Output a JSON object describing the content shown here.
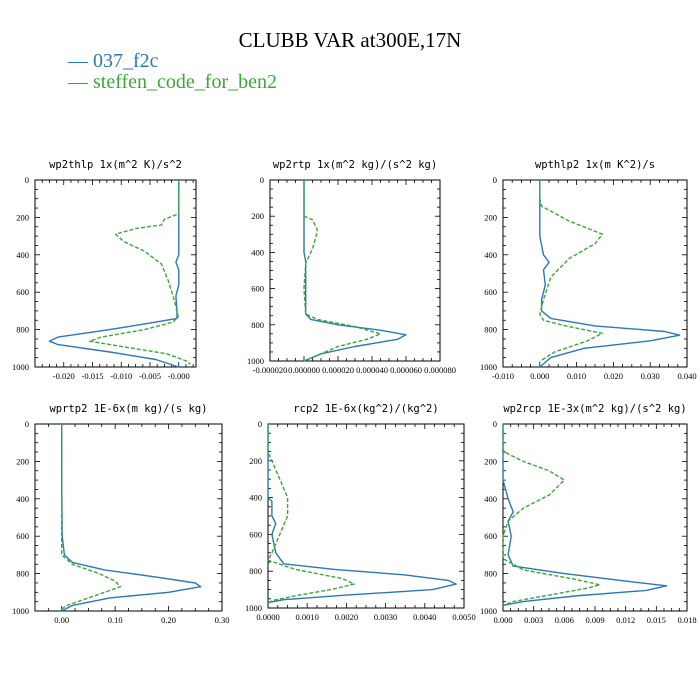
{
  "title": "CLUBB VAR at300E,17N",
  "legend": [
    {
      "dash": "—",
      "label": "037_f2c",
      "color": "#2b78b8"
    },
    {
      "dash": "—",
      "label": "steffen_code_for_ben2",
      "color": "#3aa838"
    }
  ],
  "chart_data": [
    {
      "type": "line",
      "title": "wp2thlp  1x(m^2 K)/s^2",
      "xlim": [
        -0.025,
        0.003
      ],
      "ylim": [
        1000,
        0
      ],
      "xticks": [
        -0.02,
        -0.015,
        -0.01,
        -0.005,
        0.0
      ],
      "xtick_labels": [
        "-0.020",
        "-0.015",
        "-0.010",
        "-0.005",
        "-0.000"
      ],
      "yticks": [
        0,
        200,
        400,
        600,
        800,
        1000
      ],
      "series": [
        {
          "name": "037_f2c",
          "points": [
            [
              0.0,
              0
            ],
            [
              0.0,
              100
            ],
            [
              0.0,
              200
            ],
            [
              0.0,
              300
            ],
            [
              0.0,
              400
            ],
            [
              -0.0005,
              440
            ],
            [
              0.0,
              480
            ],
            [
              0.0,
              560
            ],
            [
              -0.0005,
              620
            ],
            [
              -0.0003,
              700
            ],
            [
              -0.0003,
              740
            ],
            [
              -0.004,
              760
            ],
            [
              -0.012,
              800
            ],
            [
              -0.021,
              840
            ],
            [
              -0.0225,
              862
            ],
            [
              -0.021,
              880
            ],
            [
              -0.012,
              920
            ],
            [
              -0.004,
              960
            ],
            [
              0.0,
              1000
            ]
          ]
        },
        {
          "name": "steffen_code_for_ben2",
          "points": [
            [
              0.0,
              0
            ],
            [
              0.0,
              100
            ],
            [
              0.0,
              180
            ],
            [
              -0.0025,
              210
            ],
            [
              -0.003,
              240
            ],
            [
              -0.0075,
              260
            ],
            [
              -0.011,
              290
            ],
            [
              -0.0095,
              330
            ],
            [
              -0.006,
              380
            ],
            [
              -0.003,
              450
            ],
            [
              -0.0018,
              540
            ],
            [
              -0.0008,
              640
            ],
            [
              -0.0001,
              730
            ],
            [
              -0.001,
              760
            ],
            [
              -0.006,
              800
            ],
            [
              -0.0135,
              840
            ],
            [
              -0.0155,
              862
            ],
            [
              -0.01,
              890
            ],
            [
              -0.002,
              930
            ],
            [
              0.0015,
              970
            ],
            [
              0.002,
              985
            ]
          ]
        }
      ]
    },
    {
      "type": "line",
      "title": "wp2rtp  1x(m^2 kg)/(s^2 kg)",
      "xlim": [
        -2e-05,
        8e-05
      ],
      "ylim": [
        1000,
        0
      ],
      "xticks": [
        -2e-05,
        0.0,
        2e-05,
        4e-05,
        6e-05,
        8e-05
      ],
      "xtick_labels": [
        "-0.000020",
        "0.000000",
        "0.000020",
        "0.000040",
        "0.000060",
        "0.000080"
      ],
      "yticks": [
        0,
        200,
        400,
        600,
        800,
        1000
      ],
      "series": [
        {
          "name": "037_f2c",
          "points": [
            [
              0.0,
              0
            ],
            [
              0.0,
              200
            ],
            [
              0.0,
              400
            ],
            [
              1e-06,
              450
            ],
            [
              1e-06,
              600
            ],
            [
              1e-06,
              740
            ],
            [
              4e-06,
              770
            ],
            [
              2e-05,
              800
            ],
            [
              4.5e-05,
              830
            ],
            [
              6e-05,
              855
            ],
            [
              5.5e-05,
              880
            ],
            [
              3e-05,
              920
            ],
            [
              1e-05,
              960
            ],
            [
              0.0,
              1000
            ]
          ]
        },
        {
          "name": "steffen_code_for_ben2",
          "points": [
            [
              0.0,
              0
            ],
            [
              0.0,
              100
            ],
            [
              0.0,
              200
            ],
            [
              5e-06,
              220
            ],
            [
              8e-06,
              280
            ],
            [
              5e-06,
              380
            ],
            [
              1e-06,
              460
            ],
            [
              0.0,
              600
            ],
            [
              1e-06,
              740
            ],
            [
              8e-06,
              770
            ],
            [
              3e-05,
              810
            ],
            [
              4.5e-05,
              850
            ],
            [
              3.7e-05,
              880
            ],
            [
              2e-05,
              920
            ],
            [
              1e-05,
              960
            ],
            [
              0.0,
              1000
            ]
          ]
        }
      ]
    },
    {
      "type": "line",
      "title": "wpthlp2  1x(m K^2)/s",
      "xlim": [
        -0.01,
        0.04
      ],
      "ylim": [
        1000,
        0
      ],
      "xticks": [
        -0.01,
        0.0,
        0.01,
        0.02,
        0.03,
        0.04
      ],
      "xtick_labels": [
        "-0.010",
        "0.000",
        "0.010",
        "0.020",
        "0.030",
        "0.040"
      ],
      "yticks": [
        0,
        200,
        400,
        600,
        800,
        1000
      ],
      "series": [
        {
          "name": "037_f2c",
          "points": [
            [
              0.0,
              0
            ],
            [
              0.0,
              100
            ],
            [
              0.0,
              300
            ],
            [
              0.001,
              400
            ],
            [
              0.0025,
              440
            ],
            [
              0.001,
              480
            ],
            [
              0.0015,
              560
            ],
            [
              0.0005,
              640
            ],
            [
              0.0005,
              700
            ],
            [
              0.003,
              740
            ],
            [
              0.015,
              780
            ],
            [
              0.034,
              810
            ],
            [
              0.038,
              830
            ],
            [
              0.03,
              860
            ],
            [
              0.012,
              900
            ],
            [
              0.003,
              950
            ],
            [
              0.0,
              1000
            ]
          ]
        },
        {
          "name": "steffen_code_for_ben2",
          "points": [
            [
              0.0,
              0
            ],
            [
              0.0,
              100
            ],
            [
              0.0005,
              140
            ],
            [
              0.008,
              220
            ],
            [
              0.017,
              290
            ],
            [
              0.015,
              340
            ],
            [
              0.008,
              420
            ],
            [
              0.003,
              520
            ],
            [
              0.001,
              640
            ],
            [
              0.0,
              720
            ],
            [
              0.001,
              750
            ],
            [
              0.007,
              780
            ],
            [
              0.017,
              820
            ],
            [
              0.013,
              860
            ],
            [
              0.004,
              920
            ],
            [
              0.0,
              970
            ]
          ]
        }
      ]
    },
    {
      "type": "line",
      "title": "wprtp2  1E-6x(m kg)/(s kg)",
      "xlim": [
        -0.05,
        0.3
      ],
      "ylim": [
        1000,
        0
      ],
      "xticks": [
        0.0,
        0.1,
        0.2,
        0.3
      ],
      "xtick_labels": [
        "0.00",
        "0.10",
        "0.20",
        "0.30"
      ],
      "yticks": [
        0,
        200,
        400,
        600,
        800,
        1000
      ],
      "series": [
        {
          "name": "037_f2c",
          "points": [
            [
              0.0,
              0
            ],
            [
              0.0,
              300
            ],
            [
              0.001,
              600
            ],
            [
              0.005,
              700
            ],
            [
              0.02,
              740
            ],
            [
              0.08,
              780
            ],
            [
              0.18,
              820
            ],
            [
              0.25,
              850
            ],
            [
              0.26,
              870
            ],
            [
              0.2,
              900
            ],
            [
              0.09,
              930
            ],
            [
              0.02,
              970
            ],
            [
              0.0,
              1000
            ]
          ]
        },
        {
          "name": "steffen_code_for_ben2",
          "points": [
            [
              0.0,
              0
            ],
            [
              0.0,
              300
            ],
            [
              0.0,
              700
            ],
            [
              0.02,
              750
            ],
            [
              0.07,
              800
            ],
            [
              0.1,
              840
            ],
            [
              0.11,
              870
            ],
            [
              0.08,
              900
            ],
            [
              0.04,
              940
            ],
            [
              0.01,
              970
            ],
            [
              0.0,
              990
            ]
          ]
        }
      ]
    },
    {
      "type": "line",
      "title": "rcp2  1E-6x(kg^2)/(kg^2)",
      "xlim": [
        0.0,
        0.005
      ],
      "ylim": [
        1000,
        0
      ],
      "xticks": [
        0.0,
        0.001,
        0.002,
        0.003,
        0.004,
        0.005
      ],
      "xtick_labels": [
        "0.0000",
        "0.0010",
        "0.0020",
        "0.0030",
        "0.0040",
        "0.0050"
      ],
      "yticks": [
        0,
        200,
        400,
        600,
        800,
        1000
      ],
      "series": [
        {
          "name": "037_f2c",
          "points": [
            [
              0.0,
              0
            ],
            [
              0.0,
              400
            ],
            [
              0.0001,
              420
            ],
            [
              0.0001,
              500
            ],
            [
              0.0002,
              540
            ],
            [
              0.0001,
              600
            ],
            [
              0.0002,
              700
            ],
            [
              0.0004,
              760
            ],
            [
              0.0017,
              790
            ],
            [
              0.0035,
              820
            ],
            [
              0.0046,
              850
            ],
            [
              0.0048,
              870
            ],
            [
              0.0042,
              900
            ],
            [
              0.002,
              930
            ],
            [
              0.0004,
              955
            ],
            [
              0.0,
              970
            ]
          ]
        },
        {
          "name": "steffen_code_for_ben2",
          "points": [
            [
              0.0,
              0
            ],
            [
              0.0,
              150
            ],
            [
              0.0001,
              200
            ],
            [
              0.0003,
              300
            ],
            [
              0.0005,
              400
            ],
            [
              0.0005,
              500
            ],
            [
              0.0003,
              600
            ],
            [
              0.0001,
              700
            ],
            [
              0.0,
              740
            ],
            [
              0.0007,
              790
            ],
            [
              0.0019,
              840
            ],
            [
              0.0022,
              870
            ],
            [
              0.0016,
              900
            ],
            [
              0.0008,
              930
            ],
            [
              0.0002,
              955
            ],
            [
              0.0,
              970
            ]
          ]
        }
      ]
    },
    {
      "type": "line",
      "title": "wp2rcp  1E-3x(m^2 kg)/(s^2 kg)",
      "xlim": [
        0.0,
        0.018
      ],
      "ylim": [
        1000,
        0
      ],
      "xticks": [
        0.0,
        0.003,
        0.006,
        0.009,
        0.012,
        0.015,
        0.018
      ],
      "xtick_labels": [
        "0.000",
        "0.003",
        "0.006",
        "0.009",
        "0.012",
        "0.015",
        "0.018"
      ],
      "yticks": [
        0,
        200,
        400,
        600,
        800,
        1000
      ],
      "series": [
        {
          "name": "037_f2c",
          "points": [
            [
              0.0,
              0
            ],
            [
              0.0,
              300
            ],
            [
              0.0005,
              400
            ],
            [
              0.001,
              470
            ],
            [
              0.0005,
              520
            ],
            [
              0.0008,
              600
            ],
            [
              0.0005,
              700
            ],
            [
              0.001,
              760
            ],
            [
              0.006,
              800
            ],
            [
              0.012,
              840
            ],
            [
              0.016,
              865
            ],
            [
              0.014,
              890
            ],
            [
              0.007,
              920
            ],
            [
              0.002,
              950
            ],
            [
              0.0,
              970
            ]
          ]
        },
        {
          "name": "steffen_code_for_ben2",
          "points": [
            [
              0.0,
              0
            ],
            [
              0.0,
              140
            ],
            [
              0.0005,
              160
            ],
            [
              0.002,
              200
            ],
            [
              0.0045,
              250
            ],
            [
              0.006,
              300
            ],
            [
              0.0045,
              380
            ],
            [
              0.002,
              450
            ],
            [
              0.0005,
              520
            ],
            [
              0.0,
              600
            ],
            [
              0.0,
              720
            ],
            [
              0.002,
              780
            ],
            [
              0.007,
              830
            ],
            [
              0.0095,
              860
            ],
            [
              0.008,
              880
            ],
            [
              0.004,
              920
            ],
            [
              0.001,
              950
            ],
            [
              0.0,
              970
            ]
          ]
        }
      ]
    }
  ]
}
